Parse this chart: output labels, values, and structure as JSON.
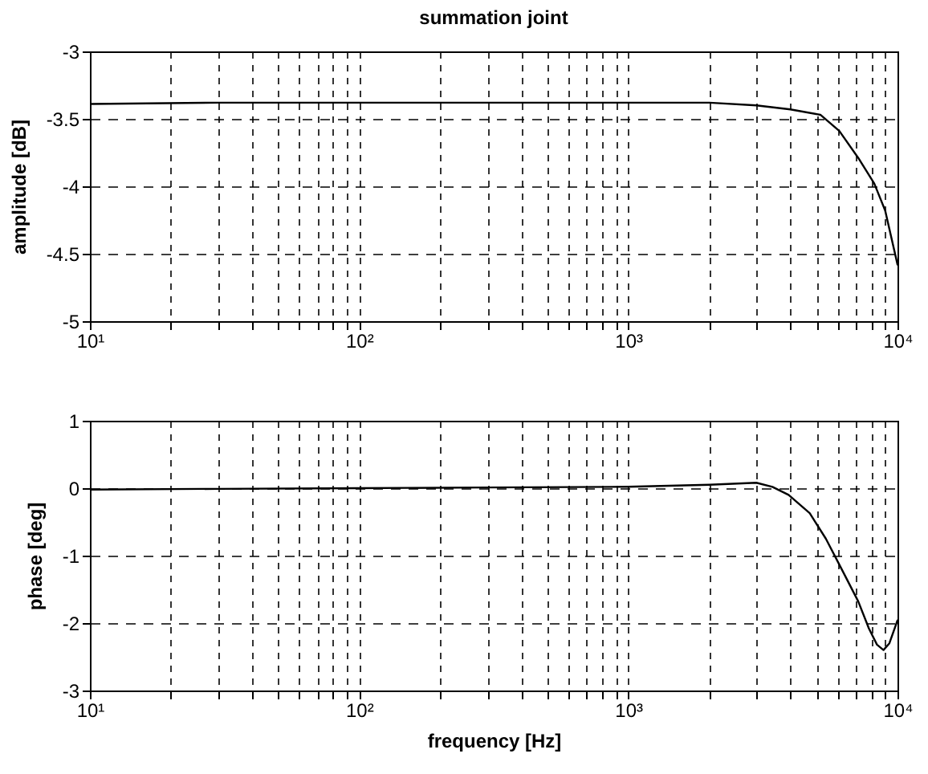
{
  "chart_data": [
    {
      "type": "line",
      "title": "summation joint",
      "ylabel": "amplitude [dB]",
      "log": "x",
      "grid": true,
      "x": [
        10,
        30,
        100,
        300,
        1000,
        2000,
        2990,
        4000,
        5170,
        6080,
        7150,
        8200,
        9000,
        10000
      ],
      "series": [
        {
          "color": "#000000",
          "values": [
            -3.39,
            -3.38,
            -3.38,
            -3.38,
            -3.38,
            -3.38,
            -3.4,
            -3.43,
            -3.47,
            -3.59,
            -3.79,
            -3.98,
            -4.18,
            -4.58
          ]
        }
      ],
      "xlim": [
        10,
        10000
      ],
      "ylim": [
        -5,
        -3
      ],
      "xticks": [
        {
          "value": 10,
          "label": "10¹"
        },
        {
          "value": 20,
          "label": null
        },
        {
          "value": 30,
          "label": null
        },
        {
          "value": 40,
          "label": null
        },
        {
          "value": 50,
          "label": null
        },
        {
          "value": 60,
          "label": null
        },
        {
          "value": 70,
          "label": null
        },
        {
          "value": 80,
          "label": null
        },
        {
          "value": 90,
          "label": null
        },
        {
          "value": 100,
          "label": "10²"
        },
        {
          "value": 200,
          "label": null
        },
        {
          "value": 300,
          "label": null
        },
        {
          "value": 400,
          "label": null
        },
        {
          "value": 500,
          "label": null
        },
        {
          "value": 600,
          "label": null
        },
        {
          "value": 700,
          "label": null
        },
        {
          "value": 800,
          "label": null
        },
        {
          "value": 900,
          "label": null
        },
        {
          "value": 1000,
          "label": "10³"
        },
        {
          "value": 2000,
          "label": null
        },
        {
          "value": 3000,
          "label": null
        },
        {
          "value": 4000,
          "label": null
        },
        {
          "value": 5000,
          "label": null
        },
        {
          "value": 6000,
          "label": null
        },
        {
          "value": 7000,
          "label": null
        },
        {
          "value": 8000,
          "label": null
        },
        {
          "value": 9000,
          "label": null
        },
        {
          "value": 10000,
          "label": "10⁴"
        }
      ],
      "yticks": [
        -5,
        -4.5,
        -4,
        -3.5,
        -3
      ]
    },
    {
      "type": "line",
      "xlabel": "frequency [Hz]",
      "ylabel": "phase [deg]",
      "log": "x",
      "grid": true,
      "x": [
        10,
        30,
        100,
        300,
        1000,
        2000,
        2990,
        3430,
        3940,
        4720,
        5420,
        6220,
        7150,
        7830,
        8390,
        8870,
        9330,
        10000
      ],
      "series": [
        {
          "color": "#000000",
          "values": [
            -0.02,
            -0.01,
            0.0,
            0.01,
            0.02,
            0.05,
            0.08,
            0.02,
            -0.1,
            -0.37,
            -0.75,
            -1.21,
            -1.68,
            -2.08,
            -2.32,
            -2.4,
            -2.3,
            -1.96
          ]
        }
      ],
      "xlim": [
        10,
        10000
      ],
      "ylim": [
        -3,
        1
      ],
      "xticks": [
        {
          "value": 10,
          "label": "10¹"
        },
        {
          "value": 20,
          "label": null
        },
        {
          "value": 30,
          "label": null
        },
        {
          "value": 40,
          "label": null
        },
        {
          "value": 50,
          "label": null
        },
        {
          "value": 60,
          "label": null
        },
        {
          "value": 70,
          "label": null
        },
        {
          "value": 80,
          "label": null
        },
        {
          "value": 90,
          "label": null
        },
        {
          "value": 100,
          "label": "10²"
        },
        {
          "value": 200,
          "label": null
        },
        {
          "value": 300,
          "label": null
        },
        {
          "value": 400,
          "label": null
        },
        {
          "value": 500,
          "label": null
        },
        {
          "value": 600,
          "label": null
        },
        {
          "value": 700,
          "label": null
        },
        {
          "value": 800,
          "label": null
        },
        {
          "value": 900,
          "label": null
        },
        {
          "value": 1000,
          "label": "10³"
        },
        {
          "value": 2000,
          "label": null
        },
        {
          "value": 3000,
          "label": null
        },
        {
          "value": 4000,
          "label": null
        },
        {
          "value": 5000,
          "label": null
        },
        {
          "value": 6000,
          "label": null
        },
        {
          "value": 7000,
          "label": null
        },
        {
          "value": 8000,
          "label": null
        },
        {
          "value": 9000,
          "label": null
        },
        {
          "value": 10000,
          "label": "10⁴"
        }
      ],
      "yticks": [
        -3,
        -2,
        -1,
        0,
        1
      ]
    }
  ]
}
